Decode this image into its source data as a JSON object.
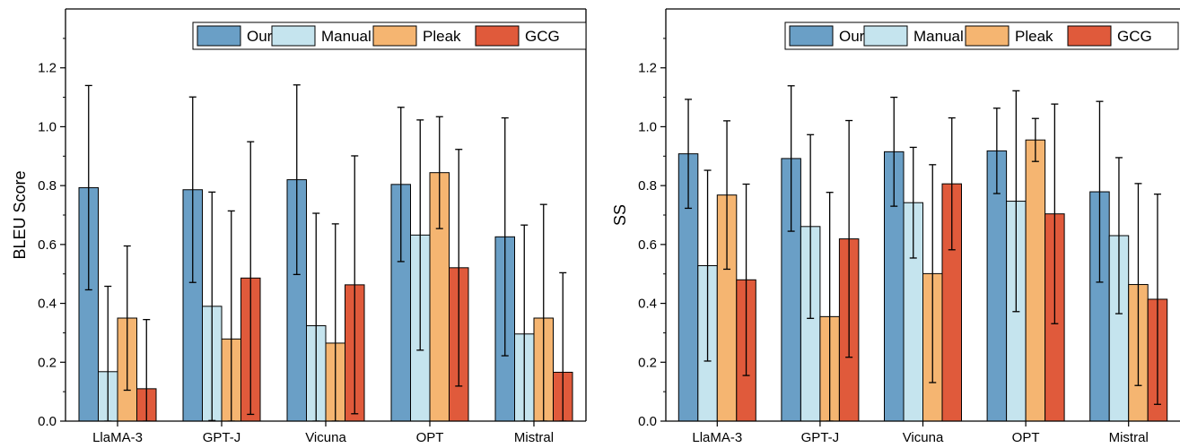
{
  "chart_data": [
    {
      "type": "bar",
      "ylabel": "BLEU Score",
      "xlabel": "",
      "ylim": [
        0,
        1.4
      ],
      "yticks": [
        "0.0",
        "0.2",
        "0.4",
        "0.6",
        "0.8",
        "1.0",
        "1.2"
      ],
      "legend_position": "top-right",
      "categories": [
        "LlaMA-3",
        "GPT-J",
        "Vicuna",
        "OPT",
        "Mistral"
      ],
      "series": [
        {
          "name": "Our",
          "color": "#6a9fc6",
          "values": [
            0.793,
            0.786,
            0.82,
            0.804,
            0.626
          ],
          "error": [
            0.347,
            0.315,
            0.322,
            0.262,
            0.404
          ]
        },
        {
          "name": "Manual",
          "color": "#c5e4ee",
          "values": [
            0.168,
            0.39,
            0.324,
            0.632,
            0.296
          ],
          "error": [
            0.29,
            0.388,
            0.382,
            0.391,
            0.37
          ]
        },
        {
          "name": "Pleak",
          "color": "#f5b571",
          "values": [
            0.35,
            0.279,
            0.265,
            0.844,
            0.35
          ],
          "error": [
            0.245,
            0.435,
            0.405,
            0.19,
            0.386
          ]
        },
        {
          "name": "GCG",
          "color": "#e05a3b",
          "values": [
            0.11,
            0.486,
            0.463,
            0.521,
            0.166
          ],
          "error": [
            0.235,
            0.463,
            0.438,
            0.402,
            0.338
          ]
        }
      ]
    },
    {
      "type": "bar",
      "ylabel": "SS",
      "xlabel": "",
      "ylim": [
        0,
        1.4
      ],
      "yticks": [
        "0.0",
        "0.2",
        "0.4",
        "0.6",
        "0.8",
        "1.0",
        "1.2"
      ],
      "legend_position": "top-right",
      "categories": [
        "LlaMA-3",
        "GPT-J",
        "Vicuna",
        "OPT",
        "Mistral"
      ],
      "series": [
        {
          "name": "Our",
          "color": "#6a9fc6",
          "values": [
            0.908,
            0.892,
            0.915,
            0.918,
            0.779
          ],
          "error": [
            0.185,
            0.247,
            0.185,
            0.145,
            0.307
          ]
        },
        {
          "name": "Manual",
          "color": "#c5e4ee",
          "values": [
            0.528,
            0.661,
            0.742,
            0.747,
            0.63
          ],
          "error": [
            0.324,
            0.312,
            0.188,
            0.375,
            0.265
          ]
        },
        {
          "name": "Pleak",
          "color": "#f5b571",
          "values": [
            0.768,
            0.355,
            0.501,
            0.955,
            0.464
          ],
          "error": [
            0.252,
            0.422,
            0.37,
            0.073,
            0.343
          ]
        },
        {
          "name": "GCG",
          "color": "#e05a3b",
          "values": [
            0.48,
            0.619,
            0.806,
            0.704,
            0.414
          ],
          "error": [
            0.325,
            0.402,
            0.224,
            0.373,
            0.357
          ]
        }
      ]
    }
  ]
}
